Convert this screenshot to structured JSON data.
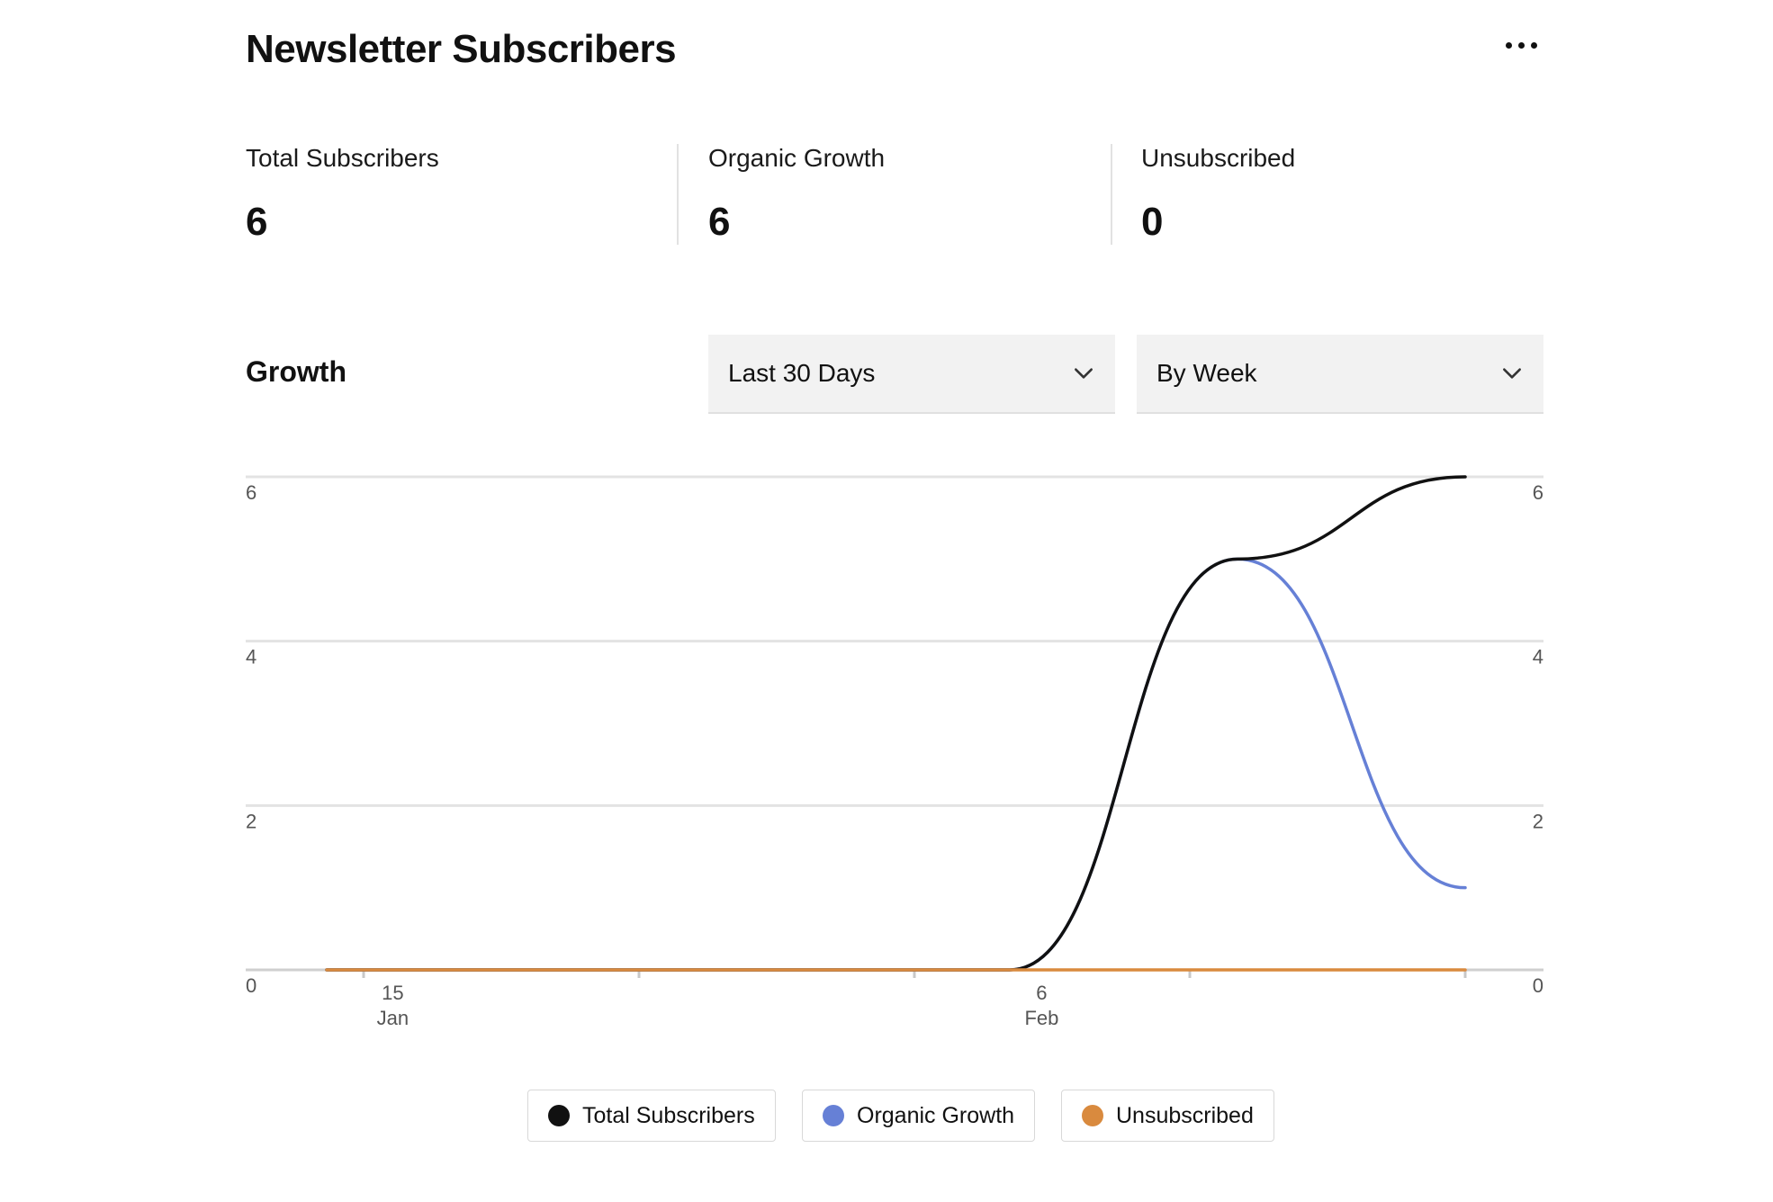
{
  "header": {
    "title": "Newsletter Subscribers",
    "more_icon": "ellipsis-icon"
  },
  "stats": [
    {
      "label": "Total Subscribers",
      "value": "6"
    },
    {
      "label": "Organic Growth",
      "value": "6"
    },
    {
      "label": "Unsubscribed",
      "value": "0"
    }
  ],
  "growth": {
    "heading": "Growth",
    "range_select": {
      "value": "Last 30 Days",
      "icon": "chevron-down-icon"
    },
    "interval_select": {
      "value": "By Week",
      "icon": "chevron-down-icon"
    }
  },
  "colors": {
    "total": "#111111",
    "organic": "#6680d6",
    "unsubscribed": "#d98a3e"
  },
  "chart_data": {
    "type": "line",
    "title": "",
    "x": [
      "Jan 12",
      "Jan 19",
      "Jan 26",
      "Feb 2",
      "Feb 9",
      "Feb 16"
    ],
    "x_tick_labels": [
      {
        "day": "15",
        "month": "Jan",
        "x": 0.29
      },
      {
        "day": "6",
        "month": "Feb",
        "x": 3.14
      }
    ],
    "ylim": [
      0,
      6
    ],
    "y_ticks": [
      0,
      2,
      4,
      6
    ],
    "y_axis_left": true,
    "y_axis_right": true,
    "grid": true,
    "legend_position": "bottom-center",
    "series": [
      {
        "name": "Total Subscribers",
        "color": "#111111",
        "values": [
          0,
          0,
          0,
          0,
          5,
          6
        ]
      },
      {
        "name": "Organic Growth",
        "color": "#6680d6",
        "values": [
          0,
          0,
          0,
          0,
          5,
          1
        ]
      },
      {
        "name": "Unsubscribed",
        "color": "#d98a3e",
        "values": [
          0,
          0,
          0,
          0,
          0,
          0
        ]
      }
    ]
  }
}
